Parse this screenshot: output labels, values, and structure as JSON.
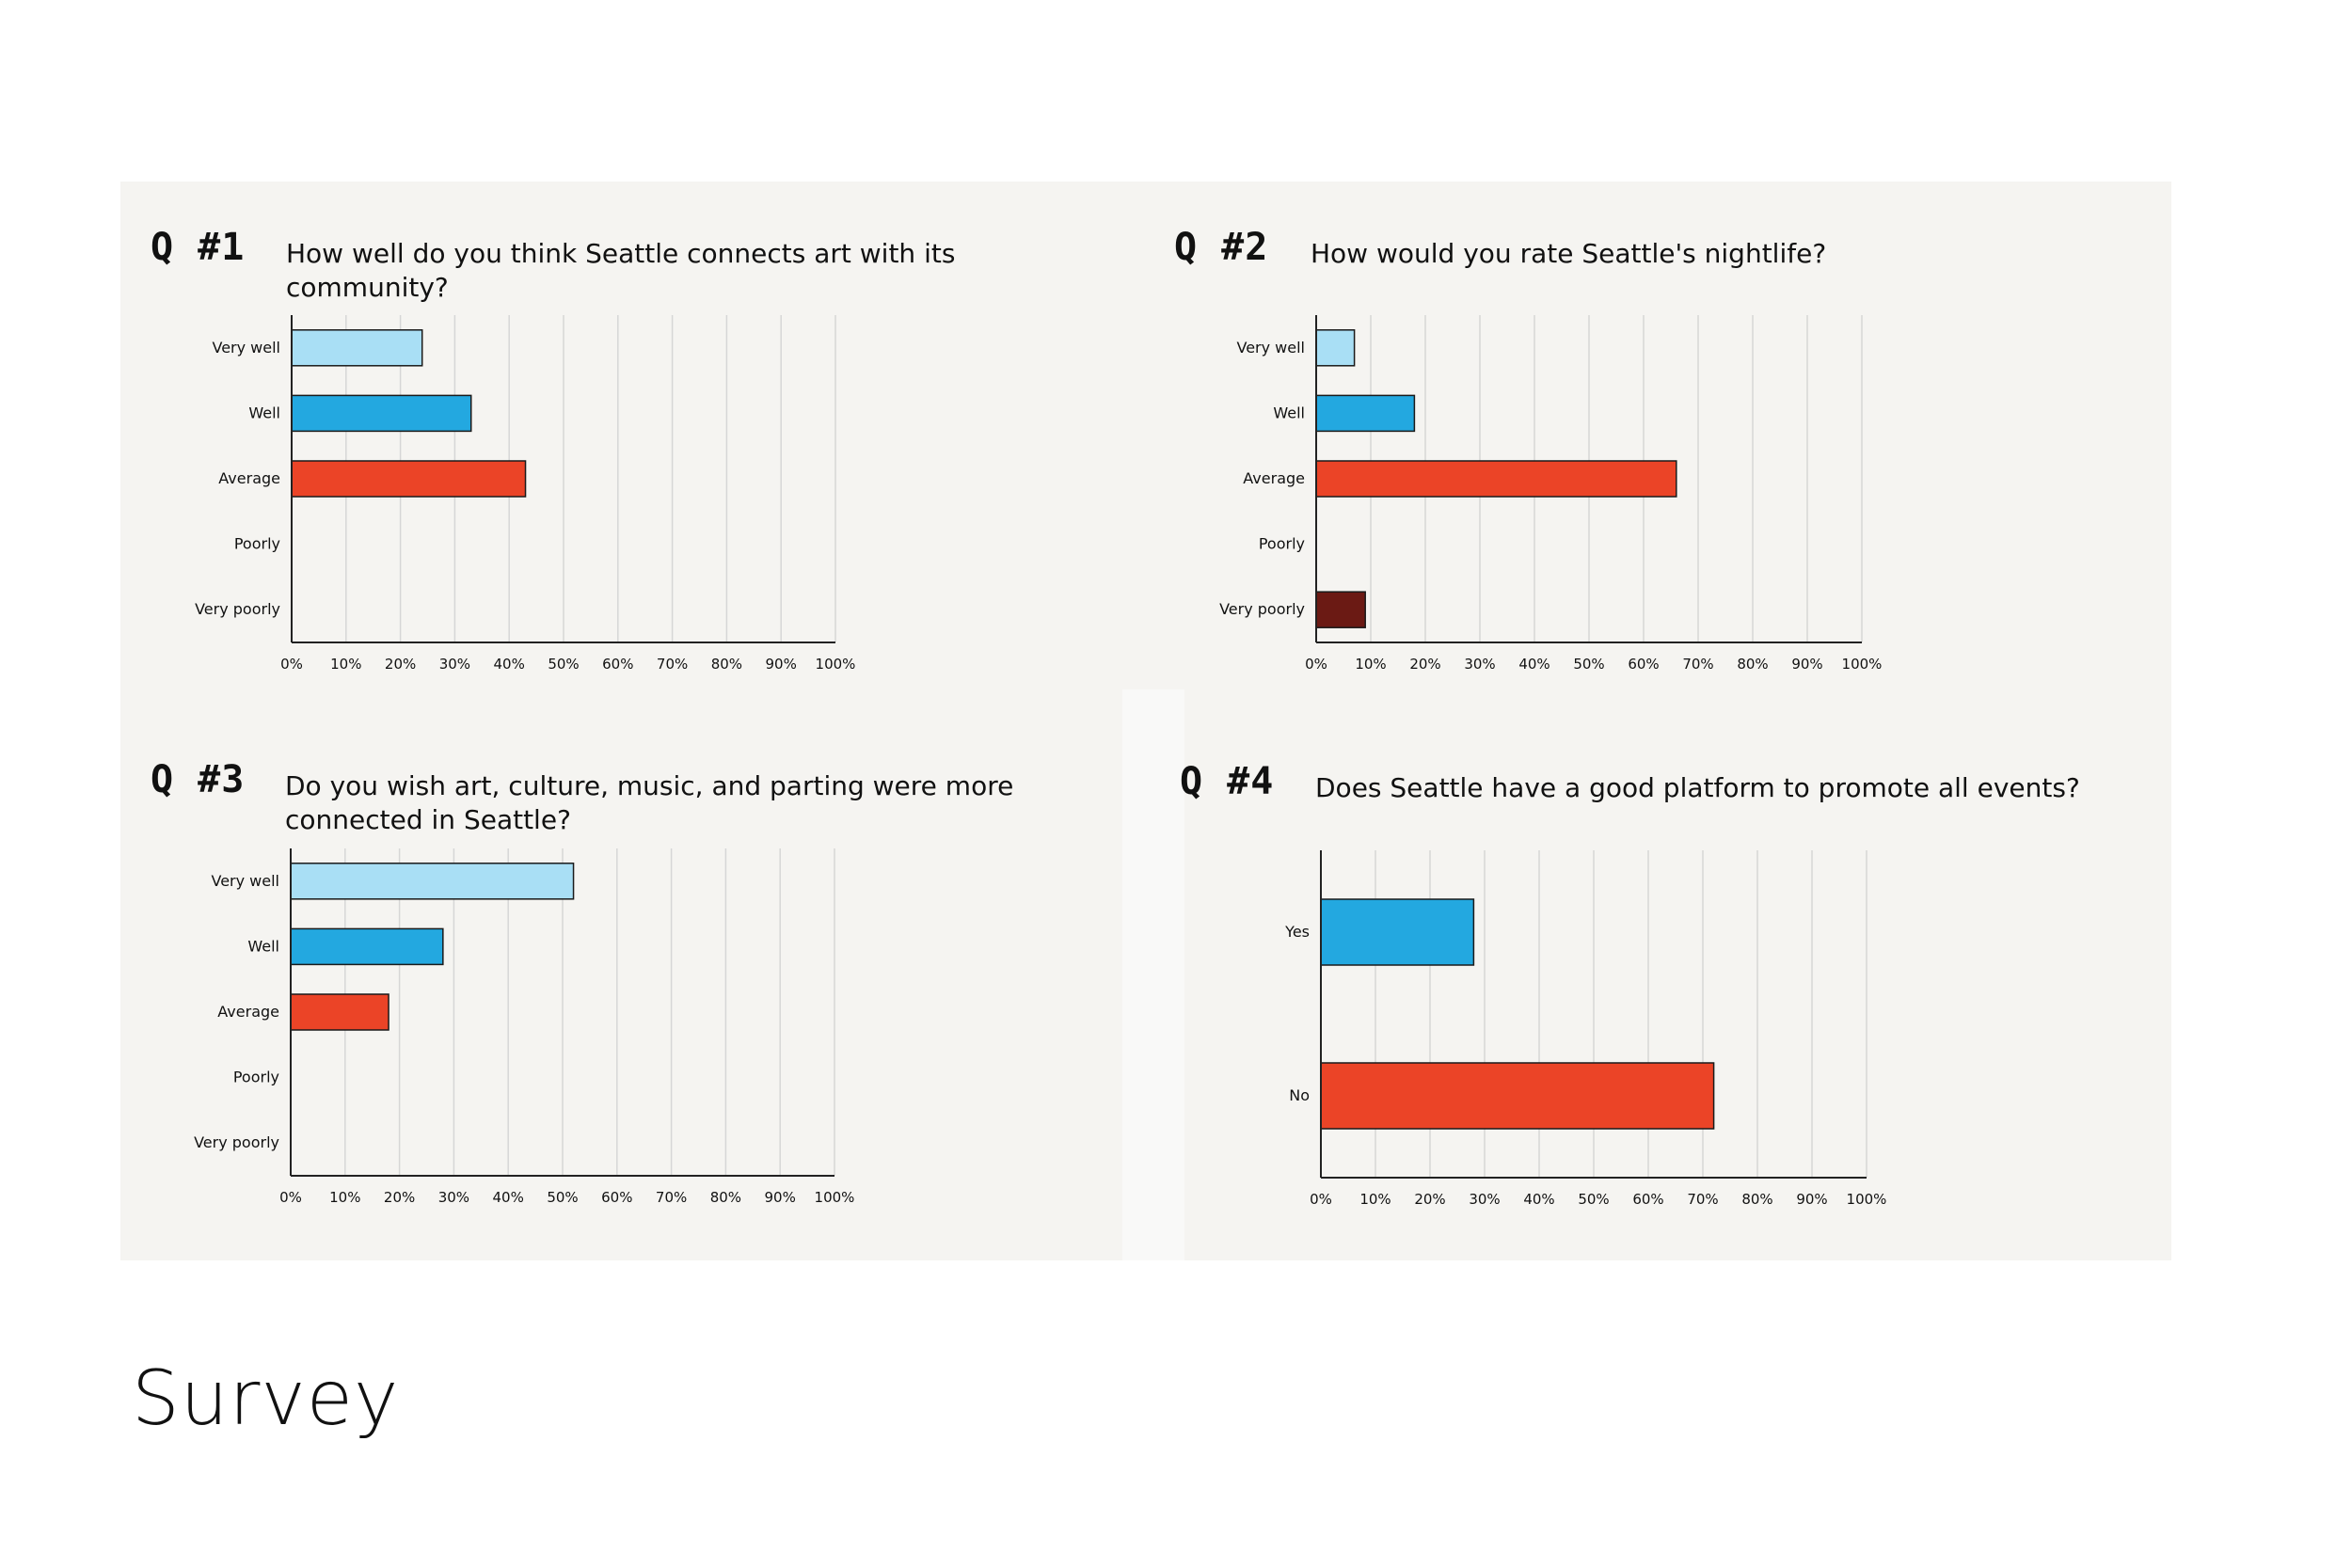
{
  "colors": {
    "background": "#ffffff",
    "panel": "#f5f4f1",
    "light_blue": "#a9dff5",
    "blue": "#23a8e0",
    "red": "#eb4427",
    "dark_red": "#6b1a14",
    "grid": "#d6d6d6",
    "axis": "#222222",
    "bar_outline": "#1a1a1a"
  },
  "page_title": "Survey",
  "chart_data": [
    {
      "type": "bar",
      "orientation": "horizontal",
      "number": "Q #1",
      "title": "How well do you think Seattle connects art with its community?",
      "categories": [
        "Very well",
        "Well",
        "Average",
        "Poorly",
        "Very poorly"
      ],
      "values": [
        24,
        33,
        43,
        0,
        0
      ],
      "bar_colors": [
        "light_blue",
        "blue",
        "red",
        "dark_red",
        "dark_red"
      ],
      "xlim": [
        0,
        100
      ],
      "xticks": [
        "0%",
        "10%",
        "20%",
        "30%",
        "40%",
        "50%",
        "60%",
        "70%",
        "80%",
        "90%",
        "100%"
      ],
      "grid": true
    },
    {
      "type": "bar",
      "orientation": "horizontal",
      "number": "Q #2",
      "title": "How would you rate Seattle's nightlife?",
      "categories": [
        "Very well",
        "Well",
        "Average",
        "Poorly",
        "Very poorly"
      ],
      "values": [
        7,
        18,
        66,
        0,
        9
      ],
      "bar_colors": [
        "light_blue",
        "blue",
        "red",
        "dark_red",
        "dark_red"
      ],
      "xlim": [
        0,
        100
      ],
      "xticks": [
        "0%",
        "10%",
        "20%",
        "30%",
        "40%",
        "50%",
        "60%",
        "70%",
        "80%",
        "90%",
        "100%"
      ],
      "grid": true
    },
    {
      "type": "bar",
      "orientation": "horizontal",
      "number": "Q #3",
      "title": "Do you wish art, culture, music, and parting were more connected in Seattle?",
      "categories": [
        "Very well",
        "Well",
        "Average",
        "Poorly",
        "Very poorly"
      ],
      "values": [
        52,
        28,
        18,
        0,
        0
      ],
      "bar_colors": [
        "light_blue",
        "blue",
        "red",
        "dark_red",
        "dark_red"
      ],
      "xlim": [
        0,
        100
      ],
      "xticks": [
        "0%",
        "10%",
        "20%",
        "30%",
        "40%",
        "50%",
        "60%",
        "70%",
        "80%",
        "90%",
        "100%"
      ],
      "grid": true
    },
    {
      "type": "bar",
      "orientation": "horizontal",
      "number": "Q #4",
      "title": "Does Seattle have a good platform to promote all events?",
      "categories": [
        "Yes",
        "No"
      ],
      "values": [
        28,
        72
      ],
      "bar_colors": [
        "blue",
        "red"
      ],
      "xlim": [
        0,
        100
      ],
      "xticks": [
        "0%",
        "10%",
        "20%",
        "30%",
        "40%",
        "50%",
        "60%",
        "70%",
        "80%",
        "90%",
        "100%"
      ],
      "grid": true
    }
  ]
}
